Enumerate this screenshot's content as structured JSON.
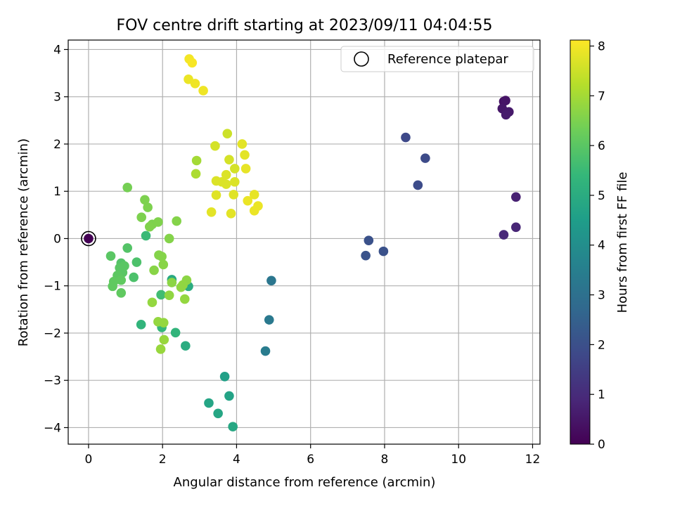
{
  "chart_data": {
    "type": "scatter",
    "title": "FOV centre drift starting at 2023/09/11 04:04:55",
    "xlabel": "Angular distance from reference (arcmin)",
    "ylabel": "Rotation from reference (arcmin)",
    "xlim": [
      -0.55,
      12.2
    ],
    "ylim": [
      -4.35,
      4.2
    ],
    "xticks": [
      0,
      2,
      4,
      6,
      8,
      10,
      12
    ],
    "yticks": [
      -4,
      -3,
      -2,
      -1,
      0,
      1,
      2,
      3,
      4
    ],
    "grid": true,
    "legend": {
      "placement": "top-right",
      "entries": [
        "Reference platepar"
      ]
    },
    "reference": {
      "name": "Reference platepar",
      "x": 0,
      "y": 0,
      "hours": 0
    },
    "colorbar": {
      "label": "Hours from first FF file",
      "min": 0,
      "max": 8.12,
      "ticks": [
        0,
        1,
        2,
        3,
        4,
        5,
        6,
        7,
        8
      ],
      "colormap": "viridis"
    },
    "points": [
      {
        "x": 11.22,
        "y": 2.9,
        "h": 0.4
      },
      {
        "x": 11.27,
        "y": 2.92,
        "h": 0.45
      },
      {
        "x": 11.18,
        "y": 2.75,
        "h": 0.5
      },
      {
        "x": 11.36,
        "y": 2.68,
        "h": 0.55
      },
      {
        "x": 11.28,
        "y": 2.62,
        "h": 0.6
      },
      {
        "x": 11.55,
        "y": 0.88,
        "h": 0.75
      },
      {
        "x": 11.55,
        "y": 0.24,
        "h": 0.85
      },
      {
        "x": 11.22,
        "y": 0.08,
        "h": 0.9
      },
      {
        "x": 8.57,
        "y": 2.14,
        "h": 1.8
      },
      {
        "x": 9.1,
        "y": 1.7,
        "h": 1.85
      },
      {
        "x": 8.9,
        "y": 1.13,
        "h": 1.9
      },
      {
        "x": 7.57,
        "y": -0.04,
        "h": 2.05
      },
      {
        "x": 7.97,
        "y": -0.27,
        "h": 2.05
      },
      {
        "x": 7.49,
        "y": -0.36,
        "h": 2.1
      },
      {
        "x": 4.94,
        "y": -0.89,
        "h": 3.2
      },
      {
        "x": 4.88,
        "y": -1.72,
        "h": 3.3
      },
      {
        "x": 4.78,
        "y": -2.38,
        "h": 3.4
      },
      {
        "x": 3.68,
        "y": -2.92,
        "h": 4.6
      },
      {
        "x": 3.8,
        "y": -3.33,
        "h": 4.7
      },
      {
        "x": 3.25,
        "y": -3.48,
        "h": 4.75
      },
      {
        "x": 3.5,
        "y": -3.7,
        "h": 4.8
      },
      {
        "x": 3.9,
        "y": -3.98,
        "h": 4.85
      },
      {
        "x": 2.62,
        "y": -2.27,
        "h": 5.0
      },
      {
        "x": 2.25,
        "y": -0.87,
        "h": 4.9
      },
      {
        "x": 2.7,
        "y": -1.01,
        "h": 5.0
      },
      {
        "x": 1.42,
        "y": -1.82,
        "h": 5.3
      },
      {
        "x": 2.35,
        "y": -1.99,
        "h": 5.3
      },
      {
        "x": 1.98,
        "y": -1.88,
        "h": 5.4
      },
      {
        "x": 1.55,
        "y": 0.06,
        "h": 5.5
      },
      {
        "x": 1.96,
        "y": -1.19,
        "h": 5.6
      },
      {
        "x": 1.3,
        "y": -0.5,
        "h": 5.8
      },
      {
        "x": 1.22,
        "y": -0.82,
        "h": 5.8
      },
      {
        "x": 1.05,
        "y": -0.2,
        "h": 5.9
      },
      {
        "x": 0.88,
        "y": -0.52,
        "h": 5.9
      },
      {
        "x": 0.6,
        "y": -0.37,
        "h": 6.0
      },
      {
        "x": 0.84,
        "y": -0.62,
        "h": 6.0
      },
      {
        "x": 0.97,
        "y": -0.58,
        "h": 6.0
      },
      {
        "x": 0.92,
        "y": -0.72,
        "h": 6.0
      },
      {
        "x": 0.78,
        "y": -0.78,
        "h": 6.05
      },
      {
        "x": 0.68,
        "y": -0.91,
        "h": 6.1
      },
      {
        "x": 0.65,
        "y": -1.01,
        "h": 6.1
      },
      {
        "x": 0.88,
        "y": -0.88,
        "h": 6.1
      },
      {
        "x": 0.88,
        "y": -1.15,
        "h": 6.1
      },
      {
        "x": 1.05,
        "y": 1.08,
        "h": 6.4
      },
      {
        "x": 1.52,
        "y": 0.82,
        "h": 6.5
      },
      {
        "x": 1.6,
        "y": 0.66,
        "h": 6.5
      },
      {
        "x": 1.43,
        "y": 0.45,
        "h": 6.5
      },
      {
        "x": 1.72,
        "y": 0.3,
        "h": 6.5
      },
      {
        "x": 1.65,
        "y": 0.25,
        "h": 6.55
      },
      {
        "x": 1.88,
        "y": 0.35,
        "h": 6.55
      },
      {
        "x": 2.38,
        "y": 0.37,
        "h": 6.6
      },
      {
        "x": 2.18,
        "y": 0.0,
        "h": 6.6
      },
      {
        "x": 1.9,
        "y": -0.35,
        "h": 6.6
      },
      {
        "x": 1.98,
        "y": -0.38,
        "h": 6.6
      },
      {
        "x": 2.02,
        "y": -0.55,
        "h": 6.65
      },
      {
        "x": 1.77,
        "y": -0.67,
        "h": 6.65
      },
      {
        "x": 2.25,
        "y": -0.93,
        "h": 6.7
      },
      {
        "x": 2.65,
        "y": -0.88,
        "h": 6.7
      },
      {
        "x": 2.55,
        "y": -0.98,
        "h": 6.75
      },
      {
        "x": 2.5,
        "y": -1.03,
        "h": 6.75
      },
      {
        "x": 2.18,
        "y": -1.2,
        "h": 6.75
      },
      {
        "x": 2.6,
        "y": -1.28,
        "h": 6.8
      },
      {
        "x": 1.72,
        "y": -1.35,
        "h": 6.8
      },
      {
        "x": 1.88,
        "y": -1.76,
        "h": 6.8
      },
      {
        "x": 2.03,
        "y": -1.78,
        "h": 6.8
      },
      {
        "x": 2.04,
        "y": -2.14,
        "h": 6.85
      },
      {
        "x": 1.95,
        "y": -2.34,
        "h": 6.85
      },
      {
        "x": 2.92,
        "y": 1.65,
        "h": 7.0
      },
      {
        "x": 2.9,
        "y": 1.37,
        "h": 7.1
      },
      {
        "x": 3.75,
        "y": 2.22,
        "h": 7.5
      },
      {
        "x": 3.42,
        "y": 1.96,
        "h": 7.6
      },
      {
        "x": 3.8,
        "y": 1.67,
        "h": 7.6
      },
      {
        "x": 3.95,
        "y": 1.48,
        "h": 7.6
      },
      {
        "x": 3.72,
        "y": 1.35,
        "h": 7.7
      },
      {
        "x": 3.45,
        "y": 1.22,
        "h": 7.7
      },
      {
        "x": 3.6,
        "y": 1.2,
        "h": 7.7
      },
      {
        "x": 3.72,
        "y": 1.15,
        "h": 7.7
      },
      {
        "x": 3.95,
        "y": 1.2,
        "h": 7.7
      },
      {
        "x": 3.92,
        "y": 0.93,
        "h": 7.75
      },
      {
        "x": 3.45,
        "y": 0.92,
        "h": 7.75
      },
      {
        "x": 3.32,
        "y": 0.56,
        "h": 7.8
      },
      {
        "x": 3.85,
        "y": 0.53,
        "h": 7.8
      },
      {
        "x": 4.15,
        "y": 2.0,
        "h": 7.8
      },
      {
        "x": 4.22,
        "y": 1.77,
        "h": 7.8
      },
      {
        "x": 4.25,
        "y": 1.48,
        "h": 7.85
      },
      {
        "x": 4.48,
        "y": 0.93,
        "h": 7.85
      },
      {
        "x": 4.3,
        "y": 0.8,
        "h": 7.9
      },
      {
        "x": 4.58,
        "y": 0.69,
        "h": 7.9
      },
      {
        "x": 4.48,
        "y": 0.59,
        "h": 7.9
      },
      {
        "x": 2.7,
        "y": 3.37,
        "h": 7.9
      },
      {
        "x": 2.88,
        "y": 3.28,
        "h": 7.95
      },
      {
        "x": 3.1,
        "y": 3.13,
        "h": 7.95
      },
      {
        "x": 2.72,
        "y": 3.8,
        "h": 8.0
      },
      {
        "x": 2.8,
        "y": 3.72,
        "h": 8.05
      }
    ]
  }
}
